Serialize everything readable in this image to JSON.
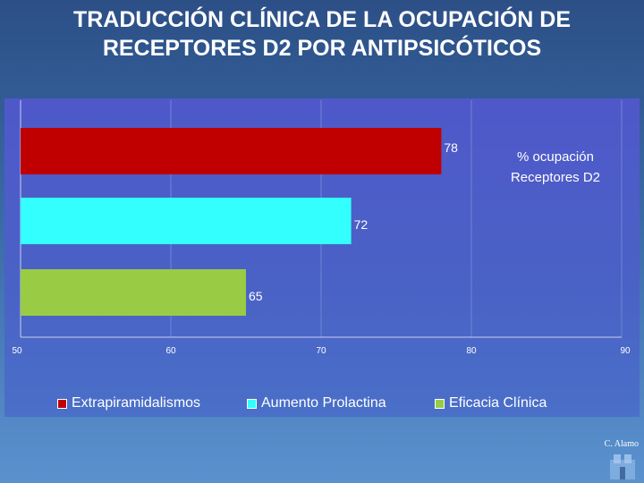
{
  "title_line1": "TRADUCCIÓN CLÍNICA DE LA OCUPACIÓN DE",
  "title_line2": "RECEPTORES D2 POR ANTIPSICÓTICOS",
  "author": "C. Alamo",
  "chart_data": {
    "type": "bar",
    "orientation": "horizontal",
    "title": "% ocupación Receptores D2",
    "title_line1": "% ocupación",
    "title_line2": "Receptores D2",
    "categories": [
      "Extrapiramidalismos",
      "Aumento Prolactina",
      "Eficacia Clínica"
    ],
    "values": [
      78,
      72,
      65
    ],
    "colors": [
      "#c00000",
      "#33ffff",
      "#99cc44"
    ],
    "xlim": [
      50,
      90
    ],
    "xticks": [
      50,
      60,
      70,
      80,
      90
    ],
    "legend_position": "bottom"
  }
}
